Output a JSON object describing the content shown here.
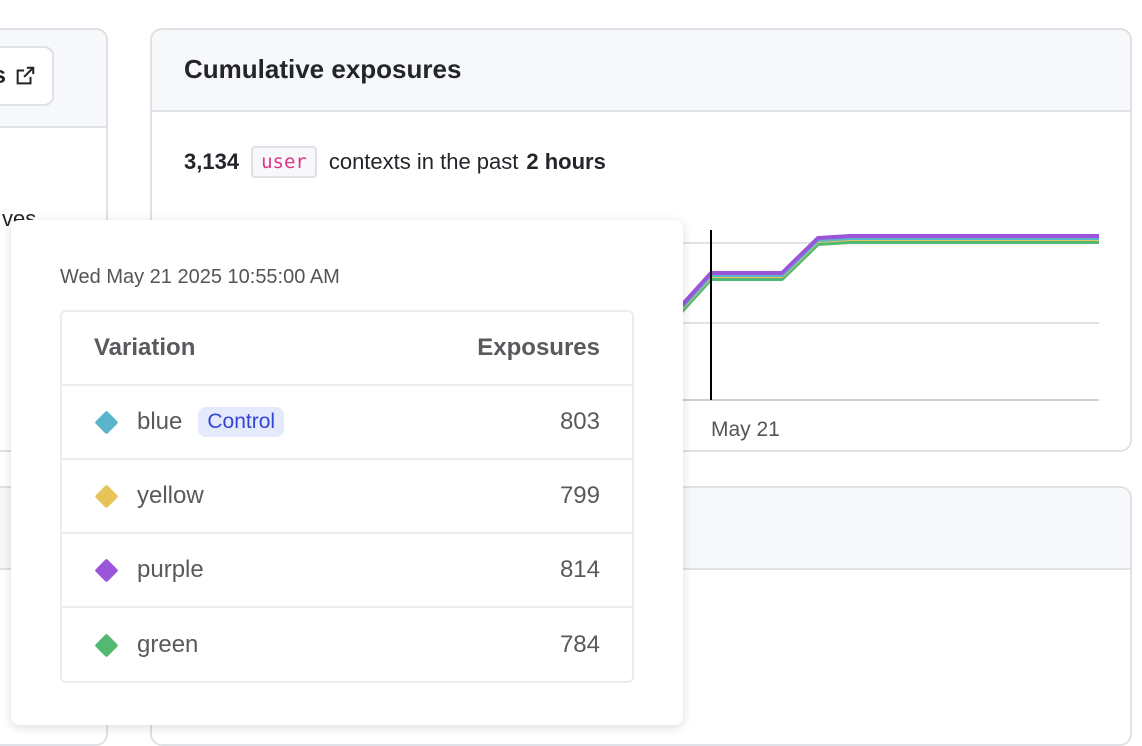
{
  "left_panel": {
    "button_label": "ts",
    "button_icon": "external-link-icon",
    "partial_text": "ves"
  },
  "exposures_card": {
    "title": "Cumulative exposures",
    "count": "3,134",
    "context_kind": "user",
    "middle_text": "contexts in the past",
    "period": "2 hours"
  },
  "chart_data": {
    "type": "line",
    "x_tick_labels": [
      "May 21"
    ],
    "series_colors": {
      "blue": "#5ab4cc",
      "yellow": "#e8c35a",
      "purple": "#9b55d9",
      "green": "#52b872"
    },
    "hover_marker": "Wed May 21 2025 10:55:00 AM"
  },
  "tooltip": {
    "date": "Wed May 21 2025 10:55:00 AM",
    "header_variation": "Variation",
    "header_exposures": "Exposures",
    "rows": [
      {
        "name": "blue",
        "badge": "Control",
        "value": "803",
        "color": "#5ab4cc"
      },
      {
        "name": "yellow",
        "value": "799",
        "color": "#e8c35a"
      },
      {
        "name": "purple",
        "value": "814",
        "color": "#9b55d9"
      },
      {
        "name": "green",
        "value": "784",
        "color": "#52b872"
      }
    ]
  }
}
